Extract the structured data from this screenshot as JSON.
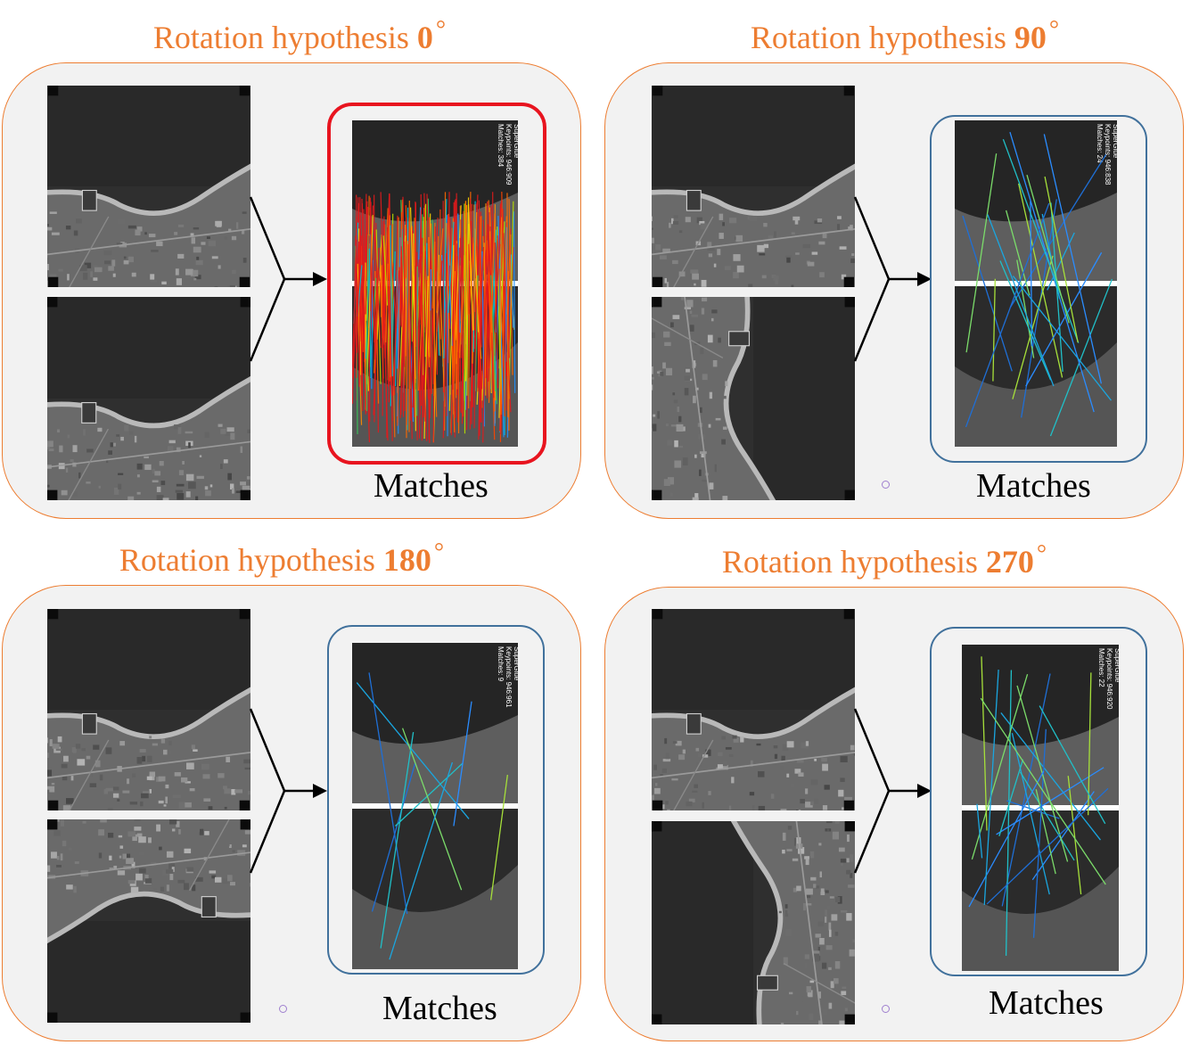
{
  "panels": [
    {
      "title_prefix": "Rotation hypothesis",
      "angle": "0",
      "degree_symbol": "°",
      "caption": "Matches",
      "best": true,
      "reference_orientation": "top",
      "query_orientation": "top",
      "overlay_text": [
        "SuperGlue",
        "Keypoints: 946:909",
        "Matches: 384"
      ],
      "match_count": 384
    },
    {
      "title_prefix": "Rotation hypothesis",
      "angle": "90",
      "degree_symbol": "°",
      "caption": "Matches",
      "best": false,
      "reference_orientation": "top",
      "query_orientation": "left",
      "overlay_text": [
        "SuperGlue",
        "Keypoints: 946:838",
        "Matches: 24"
      ],
      "match_count": 24
    },
    {
      "title_prefix": "Rotation hypothesis",
      "angle": "180",
      "degree_symbol": "°",
      "caption": "Matches",
      "best": false,
      "reference_orientation": "top",
      "query_orientation": "bottom",
      "overlay_text": [
        "SuperGlue",
        "Keypoints: 946:961",
        "Matches: 9"
      ],
      "match_count": 9
    },
    {
      "title_prefix": "Rotation hypothesis",
      "angle": "270",
      "degree_symbol": "°",
      "caption": "Matches",
      "best": false,
      "reference_orientation": "top",
      "query_orientation": "right",
      "overlay_text": [
        "SuperGlue",
        "Keypoints: 946:920",
        "Matches: 22"
      ],
      "match_count": 22
    }
  ],
  "colors": {
    "title": "#ed7d31",
    "panel_border": "#ed7d31",
    "panel_fill": "#f2f2f2",
    "best_frame": "#e8141f",
    "frame": "#41719c"
  },
  "icons": [
    "arrow-connector",
    "coast-photo"
  ]
}
